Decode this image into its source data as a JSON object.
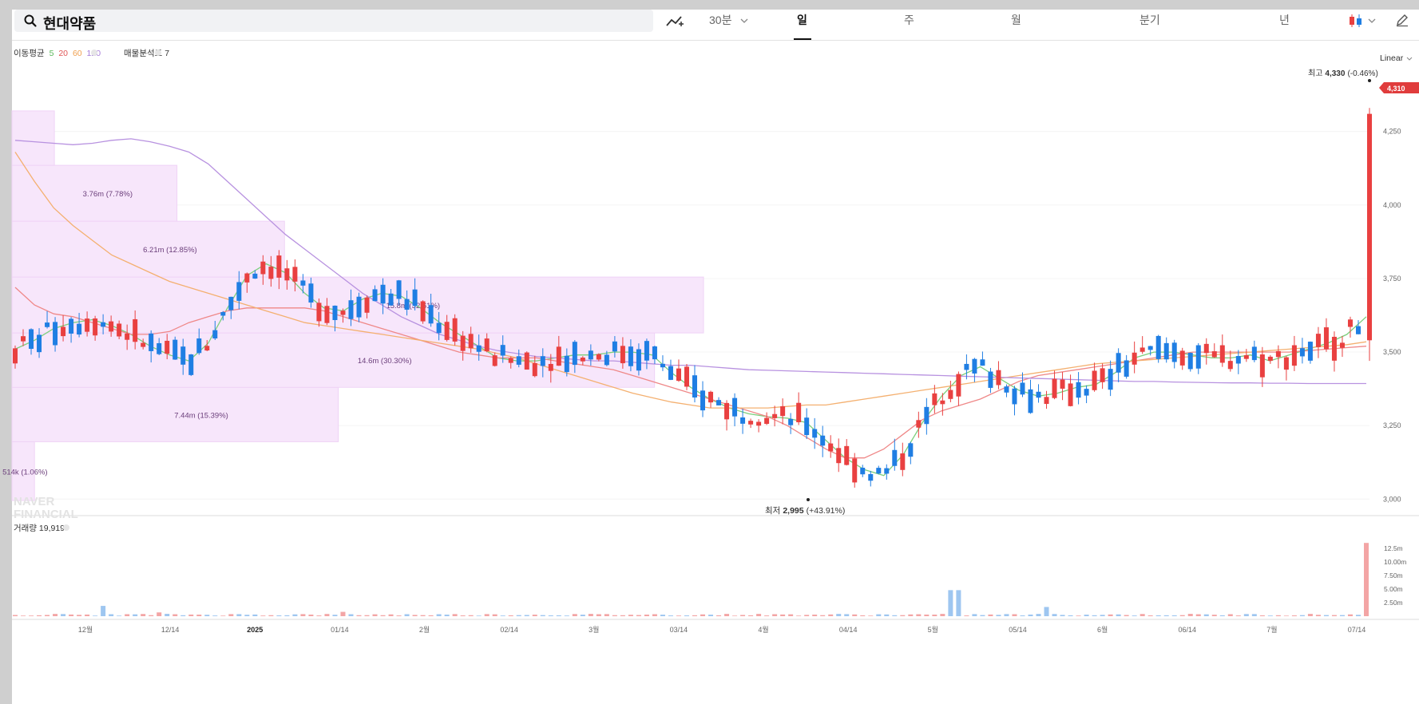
{
  "search": {
    "value": "현대약품"
  },
  "toolbar": {
    "interval_select": "30분",
    "tabs": [
      {
        "label": "일",
        "active": true
      },
      {
        "label": "주",
        "active": false
      },
      {
        "label": "월",
        "active": false
      },
      {
        "label": "분기",
        "active": false
      },
      {
        "label": "년",
        "active": false
      }
    ],
    "icons": [
      "chart-trend-icon",
      "chevron-down-icon",
      "candlestick-icon",
      "pencil-icon"
    ]
  },
  "legend": {
    "ma_label": "이동평균",
    "ma_periods": [
      {
        "label": "5",
        "color": "#5cb85c"
      },
      {
        "label": "20",
        "color": "#e05555"
      },
      {
        "label": "60",
        "color": "#f0a050"
      },
      {
        "label": "120",
        "color": "#a57ad8"
      }
    ],
    "vp_label": "매물분석도 7",
    "volume_label": "거래량 19,919"
  },
  "scale_mode": "Linear",
  "watermark": [
    "NAVER",
    "FINANCIAL"
  ],
  "colors": {
    "up": "#e94040",
    "down": "#1f7ee3",
    "profile_fill": "#f7e6fb",
    "price_tag": "#e03c3c"
  },
  "chart_data": {
    "type": "candlestick",
    "y_axis": {
      "ticks": [
        "4,250",
        "4,000",
        "3,750",
        "3,500",
        "3,250",
        "3,000"
      ],
      "range": [
        2960,
        4480
      ]
    },
    "x_axis": {
      "ticks": [
        "12월",
        "12/14",
        "2025",
        "01/14",
        "2월",
        "02/14",
        "3월",
        "03/14",
        "4월",
        "04/14",
        "5월",
        "05/14",
        "6월",
        "06/14",
        "7월",
        "07/14"
      ]
    },
    "current_price_tag": "4,310",
    "high_annotation": {
      "prefix": "최고",
      "value": "4,330",
      "change": "(-0.46%)"
    },
    "low_annotation": {
      "prefix": "최저",
      "value": "2,995",
      "change": "(+43.91%)"
    },
    "volume_profile": [
      {
        "label": "514k (1.06%)",
        "from": 2995,
        "to": 3195
      },
      {
        "label": "7.44m (15.39%)",
        "from": 3195,
        "to": 3380
      },
      {
        "label": "14.6m (30.30%)",
        "from": 3380,
        "to": 3565
      },
      {
        "label": "15.8m (32.61%)",
        "from": 3565,
        "to": 3755
      },
      {
        "label": "6.21m (12.85%)",
        "from": 3755,
        "to": 3945
      },
      {
        "label": "3.76m (7.78%)",
        "from": 3945,
        "to": 4135
      },
      {
        "label": "",
        "from": 4135,
        "to": 4320
      }
    ],
    "volume_axis": {
      "ticks": [
        "12.5m",
        "10.00m",
        "7.50m",
        "5.00m",
        "2.50m"
      ]
    },
    "ma_series": [
      {
        "name": "5",
        "values": [
          3510,
          3540,
          3580,
          3600,
          3610,
          3590,
          3560,
          3520,
          3490,
          3470,
          3530,
          3650,
          3760,
          3800,
          3770,
          3700,
          3650,
          3640,
          3680,
          3700,
          3690,
          3650,
          3600,
          3560,
          3520,
          3480,
          3470,
          3470,
          3480,
          3490,
          3490,
          3500,
          3500,
          3490,
          3430,
          3380,
          3340,
          3310,
          3290,
          3280,
          3275,
          3260,
          3200,
          3140,
          3100,
          3080,
          3150,
          3260,
          3350,
          3420,
          3450,
          3410,
          3370,
          3350,
          3360,
          3380,
          3390,
          3430,
          3480,
          3500,
          3500,
          3490,
          3480,
          3480,
          3490,
          3470,
          3490,
          3510,
          3530,
          3560,
          3620
        ]
      },
      {
        "name": "20",
        "values": [
          3720,
          3660,
          3630,
          3620,
          3600,
          3580,
          3560,
          3560,
          3570,
          3600,
          3620,
          3640,
          3650,
          3650,
          3650,
          3650,
          3640,
          3620,
          3600,
          3580,
          3560,
          3540,
          3520,
          3500,
          3490,
          3480,
          3480,
          3480,
          3470,
          3460,
          3450,
          3440,
          3420,
          3400,
          3380,
          3360,
          3340,
          3320,
          3300,
          3280,
          3250,
          3210,
          3170,
          3140,
          3140,
          3170,
          3220,
          3270,
          3300,
          3320,
          3340,
          3370,
          3400,
          3420,
          3430,
          3440,
          3450,
          3460,
          3470,
          3480,
          3490,
          3500,
          3500,
          3500,
          3500,
          3500,
          3500,
          3505,
          3510,
          3515,
          3520
        ]
      },
      {
        "name": "60",
        "values": [
          4180,
          4080,
          3990,
          3930,
          3880,
          3830,
          3800,
          3770,
          3740,
          3720,
          3700,
          3680,
          3660,
          3640,
          3620,
          3600,
          3590,
          3580,
          3570,
          3560,
          3550,
          3540,
          3530,
          3520,
          3510,
          3495,
          3480,
          3460,
          3440,
          3420,
          3400,
          3380,
          3360,
          3345,
          3330,
          3320,
          3310,
          3310,
          3310,
          3310,
          3315,
          3320,
          3320,
          3330,
          3340,
          3350,
          3360,
          3370,
          3380,
          3390,
          3400,
          3410,
          3420,
          3430,
          3440,
          3450,
          3460,
          3465,
          3470,
          3475,
          3480,
          3485,
          3490,
          3495,
          3500,
          3505,
          3510,
          3515,
          3520,
          3525,
          3535
        ]
      },
      {
        "name": "120",
        "values": [
          4220,
          4215,
          4210,
          4205,
          4210,
          4220,
          4225,
          4215,
          4200,
          4180,
          4140,
          4080,
          4020,
          3960,
          3900,
          3850,
          3800,
          3750,
          3700,
          3660,
          3620,
          3590,
          3560,
          3540,
          3520,
          3505,
          3495,
          3485,
          3480,
          3475,
          3470,
          3470,
          3465,
          3460,
          3455,
          3455,
          3450,
          3445,
          3440,
          3438,
          3436,
          3434,
          3432,
          3430,
          3428,
          3426,
          3424,
          3422,
          3420,
          3418,
          3416,
          3414,
          3412,
          3410,
          3408,
          3406,
          3404,
          3402,
          3400,
          3400,
          3398,
          3397,
          3396,
          3395,
          3395,
          3394,
          3394,
          3393,
          3393,
          3393,
          3393
        ]
      }
    ]
  }
}
